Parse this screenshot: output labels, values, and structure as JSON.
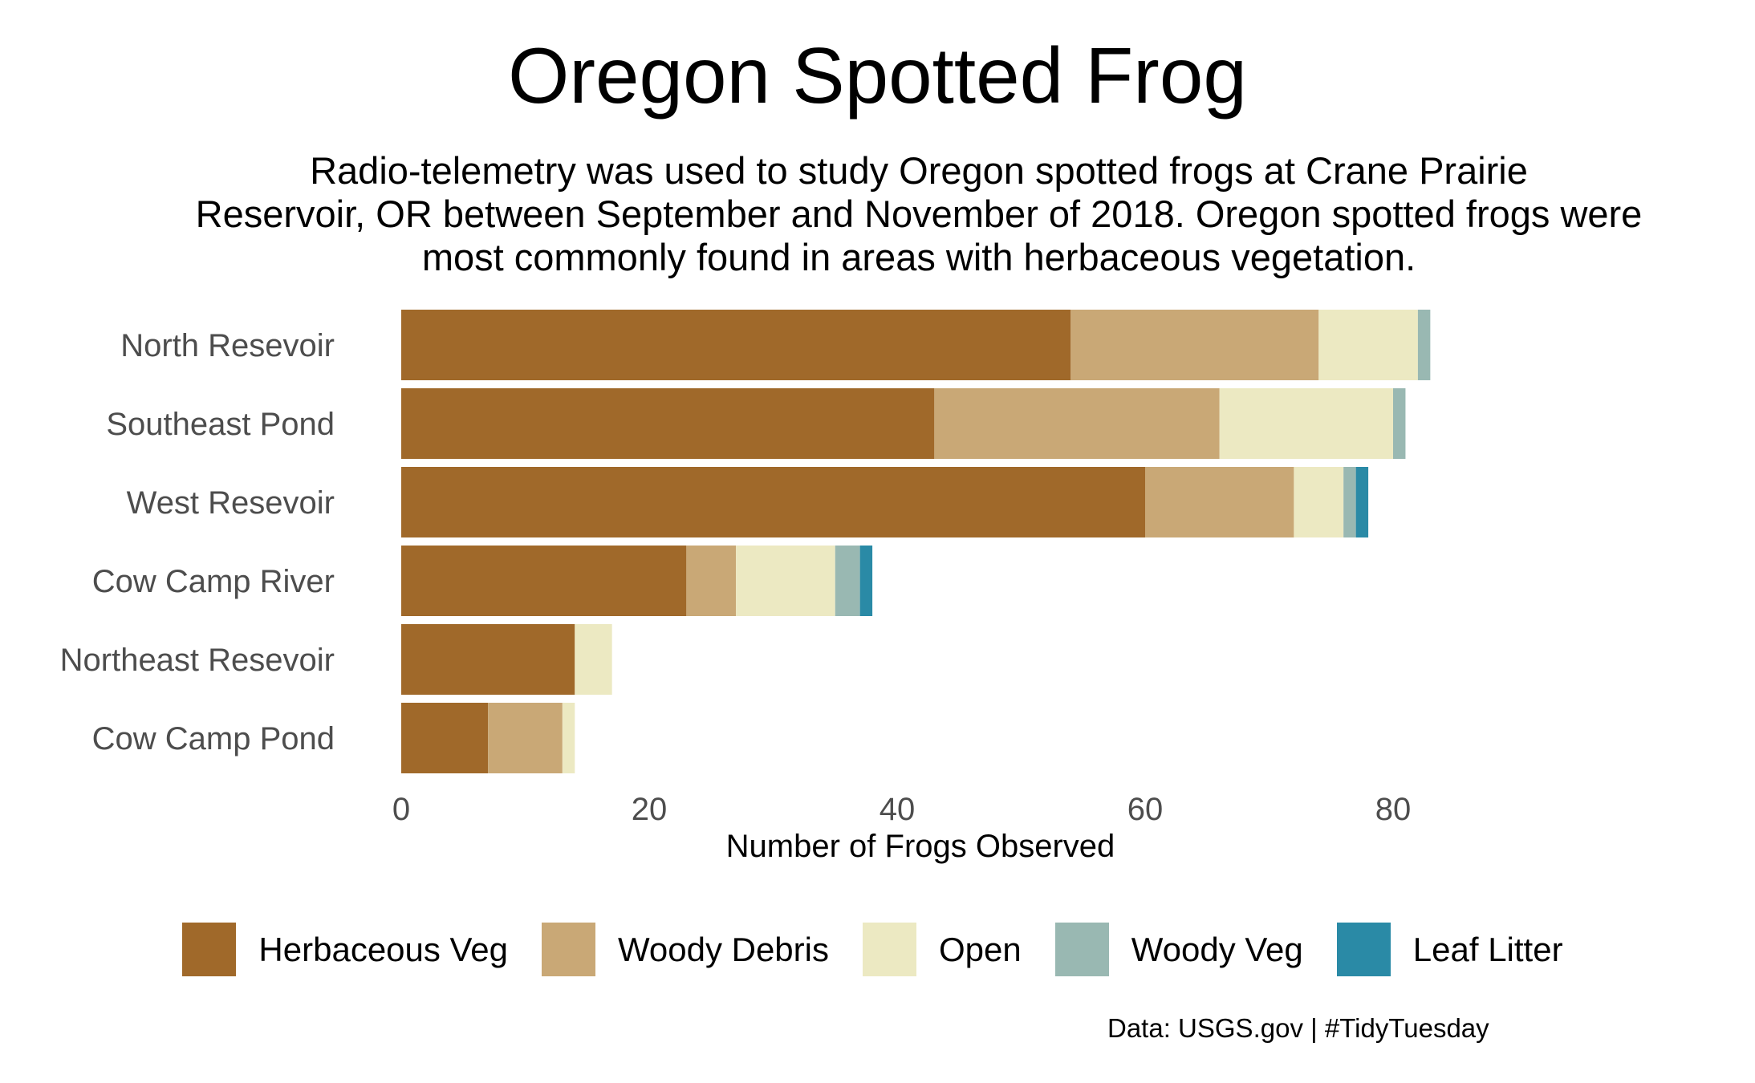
{
  "chart_data": {
    "type": "bar",
    "orientation": "horizontal",
    "stacked": true,
    "title": "Oregon Spotted Frog",
    "subtitle": "Radio-telemetry was used to study Oregon spotted frogs at Crane Prairie\nReservoir, OR between September and November of 2018. Oregon spotted frogs were\nmost commonly found in areas with herbaceous vegetation.",
    "xlabel": "Number of Frogs Observed",
    "ylabel": "",
    "xlim": [
      0,
      100
    ],
    "x_ticks": [
      0,
      20,
      40,
      60,
      80
    ],
    "grid": false,
    "legend_position": "bottom",
    "categories": [
      "North Resevoir",
      "Southeast Pond",
      "West Resevoir",
      "Cow Camp River",
      "Northeast Resevoir",
      "Cow Camp Pond"
    ],
    "series": [
      {
        "name": "Herbaceous Veg",
        "color": "#a0692a",
        "values": [
          54,
          43,
          60,
          23,
          14,
          7
        ]
      },
      {
        "name": "Woody Debris",
        "color": "#c9a876",
        "values": [
          20,
          23,
          12,
          4,
          0,
          6
        ]
      },
      {
        "name": "Open",
        "color": "#ece9c2",
        "values": [
          8,
          14,
          4,
          8,
          3,
          1
        ]
      },
      {
        "name": "Woody Veg",
        "color": "#99b8b2",
        "values": [
          1,
          1,
          1,
          2,
          0,
          0
        ]
      },
      {
        "name": "Leaf Litter",
        "color": "#2a8aa6",
        "values": [
          0,
          0,
          1,
          1,
          0,
          0
        ]
      }
    ],
    "caption": "Data: USGS.gov | #TidyTuesday"
  }
}
